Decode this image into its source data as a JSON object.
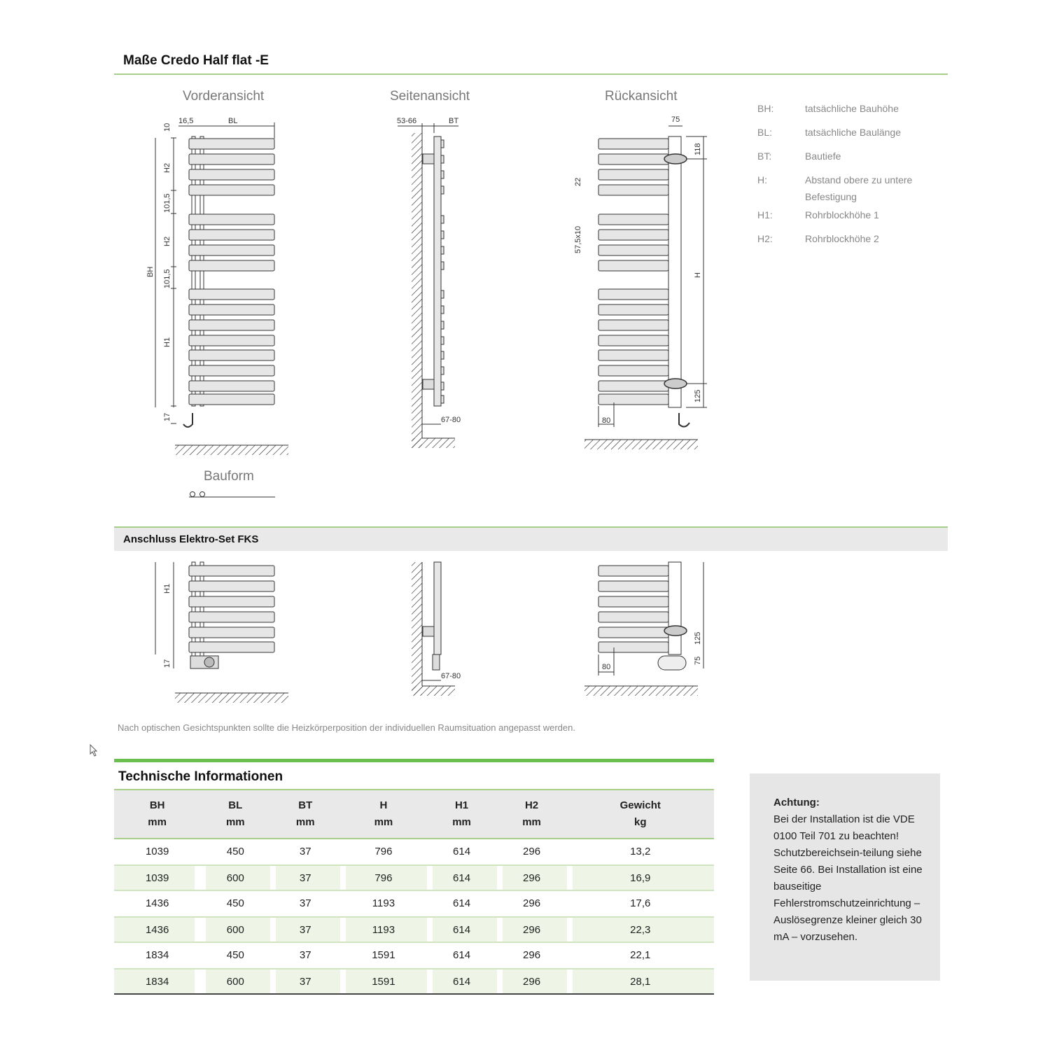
{
  "header": {
    "title": "Maße Credo Half flat -E"
  },
  "views": {
    "front": "Vorderansicht",
    "side": "Seitenansicht",
    "back": "Rückansicht",
    "form": "Bauform"
  },
  "dims": {
    "front": {
      "top": "10",
      "offset": "16,5",
      "bl": "BL",
      "bh": "BH",
      "h2a": "H2",
      "gap1": "101,5",
      "h2b": "H2",
      "gap2": "101,5",
      "h1": "H1",
      "bottom": "17"
    },
    "side": {
      "wall": "53-66",
      "bt": "BT",
      "depth": "67-80"
    },
    "back": {
      "pipe": "75",
      "top": "118",
      "spacing": "22",
      "pitch": "57,5x10",
      "h": "H",
      "bottom": "125",
      "foot": "80"
    },
    "elektro": {
      "h1": "H1",
      "bottom": "17",
      "depth": "67-80",
      "foot": "80",
      "b125": "125",
      "b75": "75"
    }
  },
  "legend": [
    {
      "key": "BH:",
      "text": "tatsächliche Bauhöhe"
    },
    {
      "key": "BL:",
      "text": "tatsächliche Baulänge"
    },
    {
      "key": "BT:",
      "text": "Bautiefe"
    },
    {
      "key": "H:",
      "text": "Abstand obere zu untere Befestigung"
    },
    {
      "key": "H1:",
      "text": "Rohrblockhöhe 1"
    },
    {
      "key": "H2:",
      "text": "Rohrblockhöhe 2"
    }
  ],
  "section2": {
    "title": "Anschluss Elektro-Set FKS"
  },
  "note": "Nach optischen Gesichtspunkten sollte die Heizkörperposition der individuellen Raumsituation angepasst werden.",
  "table": {
    "title": "Technische Informationen",
    "headers": [
      [
        "BH",
        "mm"
      ],
      [
        "BL",
        "mm"
      ],
      [
        "BT",
        "mm"
      ],
      [
        "H",
        "mm"
      ],
      [
        "H1",
        "mm"
      ],
      [
        "H2",
        "mm"
      ],
      [
        "Gewicht",
        "kg"
      ]
    ],
    "rows": [
      [
        "1039",
        "450",
        "37",
        "796",
        "614",
        "296",
        "13,2"
      ],
      [
        "1039",
        "600",
        "37",
        "796",
        "614",
        "296",
        "16,9"
      ],
      [
        "1436",
        "450",
        "37",
        "1193",
        "614",
        "296",
        "17,6"
      ],
      [
        "1436",
        "600",
        "37",
        "1193",
        "614",
        "296",
        "22,3"
      ],
      [
        "1834",
        "450",
        "37",
        "1591",
        "614",
        "296",
        "22,1"
      ],
      [
        "1834",
        "600",
        "37",
        "1591",
        "614",
        "296",
        "28,1"
      ]
    ]
  },
  "warning": {
    "title": "Achtung:",
    "text": "Bei der Installation ist die VDE 0100 Teil 701 zu beachten! Schutzbereichsein-teilung siehe Seite 66. Bei Installation ist eine bauseitige Fehlerstromschutzeinrichtung – Auslösegrenze kleiner gleich 30 mA – vorzusehen."
  },
  "colors": {
    "accent_green": "#6bbf4e",
    "light_green": "#a6d08a",
    "row_green": "#eef5e6",
    "panel_gray": "#e6e6e6"
  }
}
